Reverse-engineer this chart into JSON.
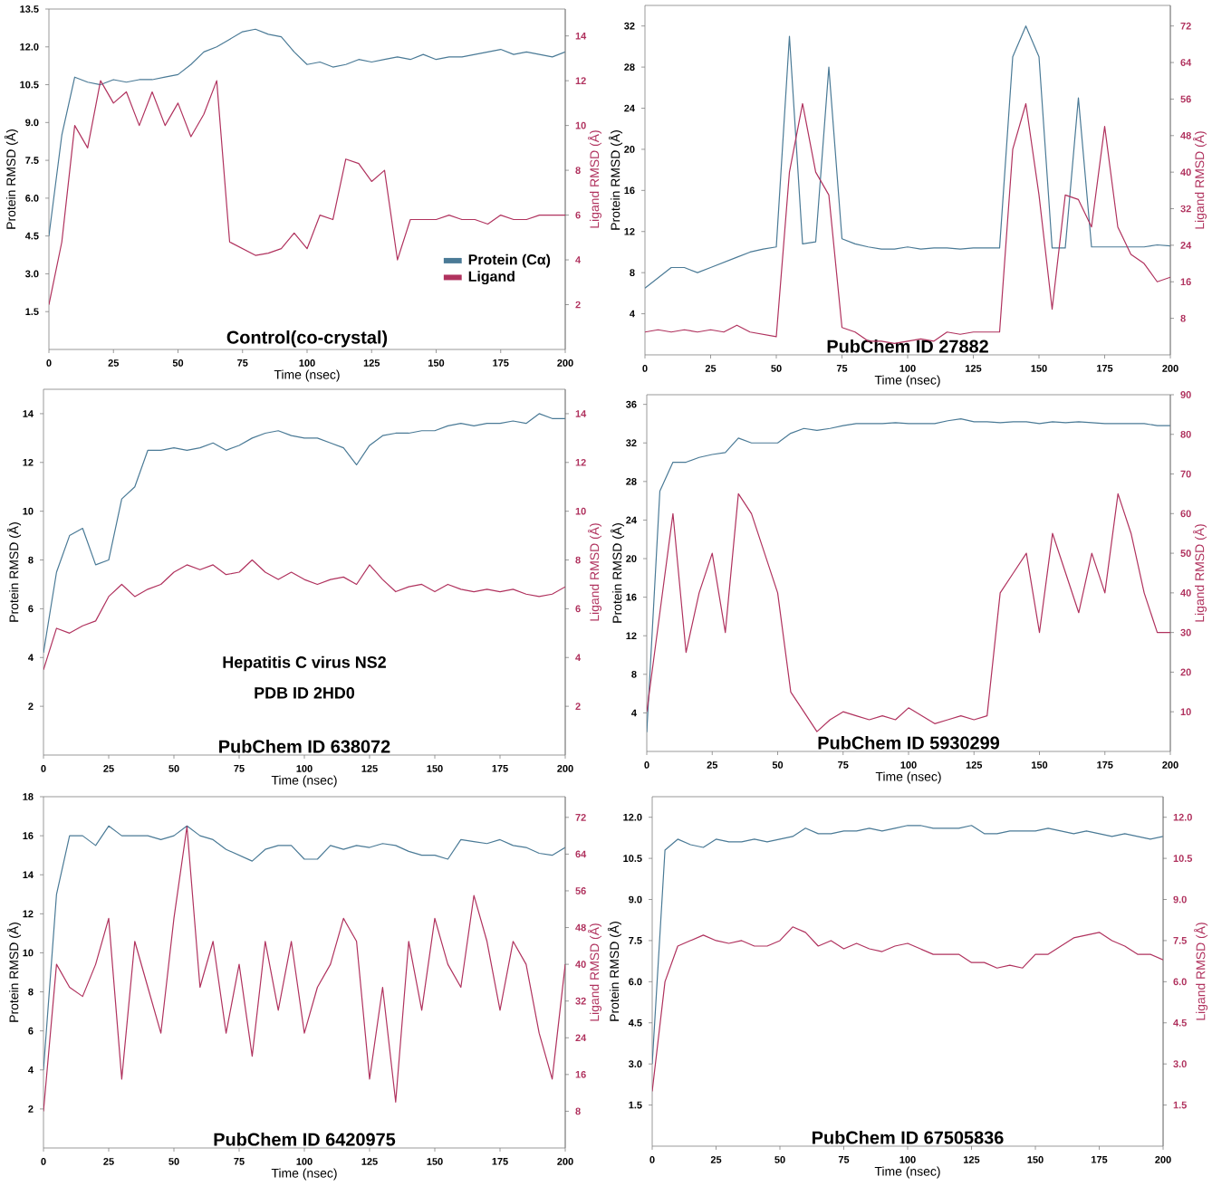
{
  "chart_data": [
    {
      "type": "line",
      "title": "Control(co-crystal)",
      "xlabel": "Time (nsec)",
      "ylabel": "Protein RMSD (Å)",
      "y2label": "Ligand RMSD (Å)",
      "legend": "bottom right",
      "x": [
        0,
        5,
        10,
        15,
        20,
        25,
        30,
        35,
        40,
        45,
        50,
        55,
        60,
        65,
        70,
        75,
        80,
        85,
        90,
        95,
        100,
        105,
        110,
        115,
        120,
        125,
        130,
        135,
        140,
        145,
        150,
        155,
        160,
        165,
        170,
        175,
        180,
        185,
        190,
        195,
        200
      ],
      "xlim": [
        0,
        200
      ],
      "xticks": [
        0,
        25,
        50,
        75,
        100,
        125,
        150,
        175,
        200
      ],
      "ylim": [
        0,
        13.5
      ],
      "yticks": [
        1.5,
        {
          "value": 3,
          "label": "3.0"
        },
        4.5,
        {
          "value": 6,
          "label": "6.0"
        },
        7.5,
        {
          "value": 9,
          "label": "9.0"
        },
        10.5,
        {
          "value": 12,
          "label": "12.0"
        },
        13.5
      ],
      "y2lim": [
        0,
        15.2
      ],
      "y2ticks": [
        2,
        4,
        6,
        8,
        10,
        12,
        14
      ],
      "series": [
        {
          "name": "Protein (Cα)",
          "color": "#4a7a96",
          "values": [
            4.5,
            8.5,
            10.8,
            10.6,
            10.5,
            10.7,
            10.6,
            10.7,
            10.7,
            10.8,
            10.9,
            11.3,
            11.8,
            12.0,
            12.3,
            12.6,
            12.7,
            12.5,
            12.4,
            11.8,
            11.3,
            11.4,
            11.2,
            11.3,
            11.5,
            11.4,
            11.5,
            11.6,
            11.5,
            11.7,
            11.5,
            11.6,
            11.6,
            11.7,
            11.8,
            11.9,
            11.7,
            11.8,
            11.7,
            11.6,
            11.8
          ]
        },
        {
          "name": "Ligand",
          "color": "#b0325e",
          "axis": "y2",
          "values": [
            2,
            4.8,
            10,
            9,
            12,
            11,
            11.5,
            10,
            11.5,
            10,
            11,
            9.5,
            10.5,
            12,
            4.8,
            4.5,
            4.2,
            4.3,
            4.5,
            5.2,
            4.5,
            6,
            5.8,
            8.5,
            8.3,
            7.5,
            8,
            4,
            5.8,
            5.8,
            5.8,
            6,
            5.8,
            5.8,
            5.6,
            6,
            5.8,
            5.8,
            6,
            6,
            6
          ]
        }
      ]
    },
    {
      "type": "line",
      "title": "PubChem ID 27882",
      "xlabel": "Time (nsec)",
      "ylabel": "Protein RMSD (Å)",
      "y2label": "Ligand RMSD (Å)",
      "x": [
        0,
        5,
        10,
        15,
        20,
        25,
        30,
        35,
        40,
        45,
        50,
        55,
        60,
        65,
        70,
        75,
        80,
        85,
        90,
        95,
        100,
        105,
        110,
        115,
        120,
        125,
        130,
        135,
        140,
        145,
        150,
        155,
        160,
        165,
        170,
        175,
        180,
        185,
        190,
        195,
        200
      ],
      "xlim": [
        0,
        200
      ],
      "xticks": [
        0,
        25,
        50,
        75,
        100,
        125,
        150,
        175,
        200
      ],
      "ylim": [
        0,
        34
      ],
      "yticks": [
        4,
        8,
        12,
        16,
        20,
        24,
        28,
        32
      ],
      "y2lim": [
        0,
        76.5
      ],
      "y2ticks": [
        8,
        16,
        24,
        32,
        40,
        48,
        56,
        64,
        72
      ],
      "series": [
        {
          "color": "#4a7a96",
          "values": [
            6.5,
            7.5,
            8.5,
            8.5,
            8,
            8.5,
            9,
            9.5,
            10,
            10.3,
            10.5,
            31,
            10.8,
            11,
            28,
            11.3,
            10.8,
            10.5,
            10.3,
            10.3,
            10.5,
            10.3,
            10.4,
            10.4,
            10.3,
            10.4,
            10.4,
            10.4,
            29,
            32,
            29,
            10.4,
            10.4,
            25,
            10.5,
            10.5,
            10.5,
            10.5,
            10.5,
            10.7,
            10.6
          ]
        },
        {
          "color": "#b0325e",
          "axis": "y2",
          "values": [
            5,
            5.5,
            5,
            5.5,
            5,
            5.5,
            5,
            6.5,
            5,
            4.5,
            4,
            40,
            55,
            40,
            35,
            6,
            5,
            3,
            3,
            2.5,
            3,
            3.5,
            3,
            5,
            4.5,
            5,
            5,
            5,
            45,
            55,
            35,
            10,
            35,
            34,
            28,
            50,
            28,
            22,
            20,
            16,
            17
          ]
        }
      ]
    },
    {
      "type": "line",
      "title": "PubChem ID 638072",
      "xlabel": "Time (nsec)",
      "ylabel": "Protein RMSD (Å)",
      "y2label": "Ligand RMSD (Å)",
      "annotations": [
        "Hepatitis C virus NS2",
        "PDB ID  2HD0"
      ],
      "x": [
        0,
        5,
        10,
        15,
        20,
        25,
        30,
        35,
        40,
        45,
        50,
        55,
        60,
        65,
        70,
        75,
        80,
        85,
        90,
        95,
        100,
        105,
        110,
        115,
        120,
        125,
        130,
        135,
        140,
        145,
        150,
        155,
        160,
        165,
        170,
        175,
        180,
        185,
        190,
        195,
        200
      ],
      "xlim": [
        0,
        200
      ],
      "xticks": [
        0,
        25,
        50,
        75,
        100,
        125,
        150,
        175,
        200
      ],
      "ylim": [
        0,
        15
      ],
      "yticks": [
        2,
        4,
        6,
        8,
        10,
        12,
        14
      ],
      "y2lim": [
        0,
        15
      ],
      "y2ticks": [
        2,
        4,
        6,
        8,
        10,
        12,
        14
      ],
      "series": [
        {
          "color": "#4a7a96",
          "values": [
            4.2,
            7.5,
            9,
            9.3,
            7.8,
            8,
            10.5,
            11,
            12.5,
            12.5,
            12.6,
            12.5,
            12.6,
            12.8,
            12.5,
            12.7,
            13,
            13.2,
            13.3,
            13.1,
            13,
            13,
            12.8,
            12.6,
            11.9,
            12.7,
            13.1,
            13.2,
            13.2,
            13.3,
            13.3,
            13.5,
            13.6,
            13.5,
            13.6,
            13.6,
            13.7,
            13.6,
            14,
            13.8,
            13.8
          ]
        },
        {
          "color": "#b0325e",
          "axis": "y2",
          "values": [
            3.5,
            5.2,
            5,
            5.3,
            5.5,
            6.5,
            7,
            6.5,
            6.8,
            7,
            7.5,
            7.8,
            7.6,
            7.8,
            7.4,
            7.5,
            8,
            7.5,
            7.2,
            7.5,
            7.2,
            7,
            7.2,
            7.3,
            7,
            7.8,
            7.2,
            6.7,
            6.9,
            7,
            6.7,
            7,
            6.8,
            6.7,
            6.8,
            6.7,
            6.8,
            6.6,
            6.5,
            6.6,
            6.9
          ]
        }
      ]
    },
    {
      "type": "line",
      "title": "PubChem ID 5930299",
      "xlabel": "Time (nsec)",
      "ylabel": "Protein RMSD (Å)",
      "y2label": "Ligand RMSD (Å)",
      "x": [
        0,
        5,
        10,
        15,
        20,
        25,
        30,
        35,
        40,
        45,
        50,
        55,
        60,
        65,
        70,
        75,
        80,
        85,
        90,
        95,
        100,
        105,
        110,
        115,
        120,
        125,
        130,
        135,
        140,
        145,
        150,
        155,
        160,
        165,
        170,
        175,
        180,
        185,
        190,
        195,
        200
      ],
      "xlim": [
        0,
        200
      ],
      "xticks": [
        0,
        25,
        50,
        75,
        100,
        125,
        150,
        175,
        200
      ],
      "ylim": [
        0,
        37
      ],
      "yticks": [
        4,
        8,
        12,
        16,
        20,
        24,
        28,
        32,
        36
      ],
      "y2lim": [
        0,
        90
      ],
      "y2ticks": [
        10,
        20,
        30,
        40,
        50,
        60,
        70,
        80,
        90
      ],
      "series": [
        {
          "color": "#4a7a96",
          "values": [
            2,
            27,
            30,
            30,
            30.5,
            30.8,
            31,
            32.5,
            32,
            32,
            32,
            33,
            33.5,
            33.3,
            33.5,
            33.8,
            34,
            34,
            34,
            34.1,
            34,
            34,
            34,
            34.3,
            34.5,
            34.2,
            34.2,
            34.1,
            34.2,
            34.2,
            34,
            34.2,
            34.1,
            34.2,
            34.1,
            34,
            34,
            34,
            34,
            33.8,
            33.8
          ]
        },
        {
          "color": "#b0325e",
          "axis": "y2",
          "values": [
            10,
            35,
            60,
            25,
            40,
            50,
            30,
            65,
            60,
            50,
            40,
            15,
            10,
            5,
            8,
            10,
            9,
            8,
            9,
            8,
            11,
            9,
            7,
            8,
            9,
            8,
            9,
            40,
            45,
            50,
            30,
            55,
            45,
            35,
            50,
            40,
            65,
            55,
            40,
            30,
            30
          ]
        }
      ]
    },
    {
      "type": "line",
      "title": "PubChem ID 6420975",
      "xlabel": "Time (nsec)",
      "ylabel": "Protein RMSD (Å)",
      "y2label": "Ligand RMSD (Å)",
      "x": [
        0,
        5,
        10,
        15,
        20,
        25,
        30,
        35,
        40,
        45,
        50,
        55,
        60,
        65,
        70,
        75,
        80,
        85,
        90,
        95,
        100,
        105,
        110,
        115,
        120,
        125,
        130,
        135,
        140,
        145,
        150,
        155,
        160,
        165,
        170,
        175,
        180,
        185,
        190,
        195,
        200
      ],
      "xlim": [
        0,
        200
      ],
      "xticks": [
        0,
        25,
        50,
        75,
        100,
        125,
        150,
        175,
        200
      ],
      "ylim": [
        0,
        18
      ],
      "yticks": [
        2,
        4,
        6,
        8,
        10,
        12,
        14,
        16,
        18
      ],
      "y2lim": [
        0,
        76.5
      ],
      "y2ticks": [
        8,
        16,
        24,
        32,
        40,
        48,
        56,
        64,
        72
      ],
      "series": [
        {
          "color": "#4a7a96",
          "values": [
            4,
            13,
            16,
            16,
            15.5,
            16.5,
            16,
            16,
            16,
            15.8,
            16,
            16.5,
            16,
            15.8,
            15.3,
            15,
            14.7,
            15.3,
            15.5,
            15.5,
            14.8,
            14.8,
            15.5,
            15.3,
            15.5,
            15.4,
            15.6,
            15.5,
            15.2,
            15,
            15,
            14.8,
            15.8,
            15.7,
            15.6,
            15.8,
            15.5,
            15.4,
            15.1,
            15,
            15.4
          ]
        },
        {
          "color": "#b0325e",
          "axis": "y2",
          "values": [
            8,
            40,
            35,
            33,
            40,
            50,
            15,
            45,
            35,
            25,
            50,
            70,
            35,
            45,
            25,
            40,
            20,
            45,
            30,
            45,
            25,
            35,
            40,
            50,
            45,
            15,
            35,
            10,
            45,
            30,
            50,
            40,
            35,
            55,
            45,
            30,
            45,
            40,
            25,
            15,
            40
          ]
        }
      ]
    },
    {
      "type": "line",
      "title": "PubChem ID 67505836",
      "xlabel": "Time (nsec)",
      "ylabel": "Protein RMSD (Å)",
      "y2label": "Ligand RMSD (Å)",
      "x": [
        0,
        5,
        10,
        15,
        20,
        25,
        30,
        35,
        40,
        45,
        50,
        55,
        60,
        65,
        70,
        75,
        80,
        85,
        90,
        95,
        100,
        105,
        110,
        115,
        120,
        125,
        130,
        135,
        140,
        145,
        150,
        155,
        160,
        165,
        170,
        175,
        180,
        185,
        190,
        195,
        200
      ],
      "xlim": [
        0,
        200
      ],
      "xticks": [
        0,
        25,
        50,
        75,
        100,
        125,
        150,
        175,
        200
      ],
      "ylim": [
        0,
        12.75
      ],
      "yticks": [
        1.5,
        {
          "value": 3,
          "label": "3.0"
        },
        4.5,
        {
          "value": 6,
          "label": "6.0"
        },
        7.5,
        {
          "value": 9,
          "label": "9.0"
        },
        10.5,
        {
          "value": 12,
          "label": "12.0"
        }
      ],
      "y2lim": [
        0,
        12.75
      ],
      "y2ticks": [
        1.5,
        {
          "value": 3,
          "label": "3.0"
        },
        4.5,
        {
          "value": 6,
          "label": "6.0"
        },
        7.5,
        {
          "value": 9,
          "label": "9.0"
        },
        10.5,
        {
          "value": 12,
          "label": "12.0"
        }
      ],
      "series": [
        {
          "color": "#4a7a96",
          "values": [
            3,
            10.8,
            11.2,
            11,
            10.9,
            11.2,
            11.1,
            11.1,
            11.2,
            11.1,
            11.2,
            11.3,
            11.6,
            11.4,
            11.4,
            11.5,
            11.5,
            11.6,
            11.5,
            11.6,
            11.7,
            11.7,
            11.6,
            11.6,
            11.6,
            11.7,
            11.4,
            11.4,
            11.5,
            11.5,
            11.5,
            11.6,
            11.5,
            11.4,
            11.5,
            11.4,
            11.3,
            11.4,
            11.3,
            11.2,
            11.3
          ]
        },
        {
          "color": "#b0325e",
          "axis": "y2",
          "values": [
            2,
            6,
            7.3,
            7.5,
            7.7,
            7.5,
            7.4,
            7.5,
            7.3,
            7.3,
            7.5,
            8,
            7.8,
            7.3,
            7.5,
            7.2,
            7.4,
            7.2,
            7.1,
            7.3,
            7.4,
            7.2,
            7,
            7,
            7,
            6.7,
            6.7,
            6.5,
            6.6,
            6.5,
            7,
            7,
            7.3,
            7.6,
            7.7,
            7.8,
            7.5,
            7.3,
            7,
            7,
            6.8
          ]
        }
      ]
    }
  ]
}
